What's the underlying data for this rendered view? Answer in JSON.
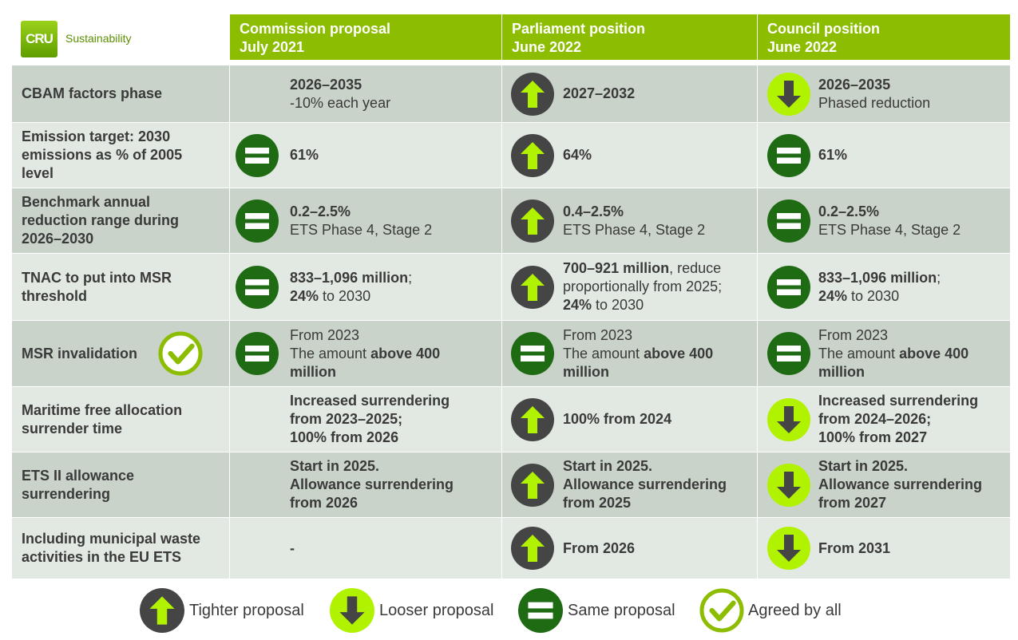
{
  "header": {
    "logo": "CRU",
    "brand": "Sustainability",
    "columns": [
      [
        "Commission proposal",
        "July 2021"
      ],
      [
        "Parliament position",
        "June 2022"
      ],
      [
        "Council position",
        "June 2022"
      ]
    ]
  },
  "table": {
    "rows": [
      {
        "label": [
          "CBAM factors phase"
        ],
        "cells": [
          {
            "icon": null,
            "lines": [
              [
                {
                  "text": "2026–2035",
                  "bold": true
                }
              ],
              [
                {
                  "text": "-10% each year",
                  "bold": false
                }
              ]
            ]
          },
          {
            "icon": "tighter",
            "lines": [
              [
                {
                  "text": "2027–2032",
                  "bold": true
                }
              ]
            ]
          },
          {
            "icon": "looser",
            "lines": [
              [
                {
                  "text": "2026–2035",
                  "bold": true
                }
              ],
              [
                {
                  "text": "Phased reduction",
                  "bold": false
                }
              ]
            ]
          }
        ]
      },
      {
        "label": [
          "Emission target: 2030",
          "emissions as % of 2005",
          "level"
        ],
        "cells": [
          {
            "icon": "same",
            "lines": [
              [
                {
                  "text": "61%",
                  "bold": true
                }
              ]
            ]
          },
          {
            "icon": "tighter",
            "lines": [
              [
                {
                  "text": "64%",
                  "bold": true
                }
              ]
            ]
          },
          {
            "icon": "same",
            "lines": [
              [
                {
                  "text": "61%",
                  "bold": true
                }
              ]
            ]
          }
        ]
      },
      {
        "label": [
          "Benchmark annual",
          "reduction range during",
          "2026–2030"
        ],
        "cells": [
          {
            "icon": "same",
            "lines": [
              [
                {
                  "text": "0.2–2.5%",
                  "bold": true
                }
              ],
              [
                {
                  "text": "ETS Phase 4, Stage 2",
                  "bold": false
                }
              ]
            ]
          },
          {
            "icon": "tighter",
            "lines": [
              [
                {
                  "text": "0.4–2.5%",
                  "bold": true
                }
              ],
              [
                {
                  "text": "ETS Phase 4, Stage 2",
                  "bold": false
                }
              ]
            ]
          },
          {
            "icon": "same",
            "lines": [
              [
                {
                  "text": "0.2–2.5%",
                  "bold": true
                }
              ],
              [
                {
                  "text": "ETS Phase 4, Stage 2",
                  "bold": false
                }
              ]
            ]
          }
        ]
      },
      {
        "label": [
          "TNAC to put into MSR",
          "threshold"
        ],
        "cells": [
          {
            "icon": "same",
            "lines": [
              [
                {
                  "text": "833–1,096 million",
                  "bold": true
                },
                {
                  "text": ";",
                  "bold": false
                }
              ],
              [
                {
                  "text": "24%",
                  "bold": true
                },
                {
                  "text": " to 2030",
                  "bold": false
                }
              ]
            ]
          },
          {
            "icon": "tighter",
            "lines": [
              [
                {
                  "text": "700–921 million",
                  "bold": true
                },
                {
                  "text": ", reduce",
                  "bold": false
                }
              ],
              [
                {
                  "text": "proportionally from 2025;",
                  "bold": false
                }
              ],
              [
                {
                  "text": "24%",
                  "bold": true
                },
                {
                  "text": " to 2030",
                  "bold": false
                }
              ]
            ]
          },
          {
            "icon": "same",
            "lines": [
              [
                {
                  "text": "833–1,096 million",
                  "bold": true
                },
                {
                  "text": ";",
                  "bold": false
                }
              ],
              [
                {
                  "text": "24%",
                  "bold": true
                },
                {
                  "text": " to 2030",
                  "bold": false
                }
              ]
            ]
          }
        ]
      },
      {
        "label": [
          "MSR invalidation"
        ],
        "badge": "agreed",
        "cells": [
          {
            "icon": "same",
            "lines": [
              [
                {
                  "text": "From 2023",
                  "bold": false
                }
              ],
              [
                {
                  "text": "The amount ",
                  "bold": false
                },
                {
                  "text": "above 400",
                  "bold": true
                }
              ],
              [
                {
                  "text": "million",
                  "bold": true
                }
              ]
            ]
          },
          {
            "icon": "same",
            "lines": [
              [
                {
                  "text": "From 2023",
                  "bold": false
                }
              ],
              [
                {
                  "text": "The amount ",
                  "bold": false
                },
                {
                  "text": "above 400",
                  "bold": true
                }
              ],
              [
                {
                  "text": "million",
                  "bold": true
                }
              ]
            ]
          },
          {
            "icon": "same",
            "lines": [
              [
                {
                  "text": "From 2023",
                  "bold": false
                }
              ],
              [
                {
                  "text": "The amount ",
                  "bold": false
                },
                {
                  "text": "above 400",
                  "bold": true
                }
              ],
              [
                {
                  "text": "million",
                  "bold": true
                }
              ]
            ]
          }
        ]
      },
      {
        "label": [
          "Maritime free allocation",
          "surrender time"
        ],
        "cells": [
          {
            "icon": null,
            "lines": [
              [
                {
                  "text": "Increased surrendering",
                  "bold": true
                }
              ],
              [
                {
                  "text": "from 2023–2025;",
                  "bold": true
                }
              ],
              [
                {
                  "text": "100% from 2026",
                  "bold": true
                }
              ]
            ]
          },
          {
            "icon": "tighter",
            "lines": [
              [
                {
                  "text": "100% from 2024",
                  "bold": true
                }
              ]
            ]
          },
          {
            "icon": "looser",
            "lines": [
              [
                {
                  "text": "Increased surrendering",
                  "bold": true
                }
              ],
              [
                {
                  "text": "from 2024–2026;",
                  "bold": true
                }
              ],
              [
                {
                  "text": "100% from 2027",
                  "bold": true
                }
              ]
            ]
          }
        ]
      },
      {
        "label": [
          "ETS II allowance",
          "surrendering"
        ],
        "cells": [
          {
            "icon": null,
            "lines": [
              [
                {
                  "text": "Start in 2025.",
                  "bold": true
                }
              ],
              [
                {
                  "text": "Allowance surrendering",
                  "bold": true
                }
              ],
              [
                {
                  "text": "from 2026",
                  "bold": true
                }
              ]
            ]
          },
          {
            "icon": "tighter",
            "lines": [
              [
                {
                  "text": "Start in 2025.",
                  "bold": true
                }
              ],
              [
                {
                  "text": "Allowance surrendering",
                  "bold": true
                }
              ],
              [
                {
                  "text": "from 2025",
                  "bold": true
                }
              ]
            ]
          },
          {
            "icon": "looser",
            "lines": [
              [
                {
                  "text": "Start in 2025.",
                  "bold": true
                }
              ],
              [
                {
                  "text": "Allowance surrendering",
                  "bold": true
                }
              ],
              [
                {
                  "text": "from 2027",
                  "bold": true
                }
              ]
            ]
          }
        ]
      },
      {
        "label": [
          "Including municipal waste",
          "activities in the EU ETS"
        ],
        "cells": [
          {
            "icon": null,
            "lines": [
              [
                {
                  "text": "-",
                  "bold": true
                }
              ]
            ]
          },
          {
            "icon": "tighter",
            "lines": [
              [
                {
                  "text": "From 2026",
                  "bold": true
                }
              ]
            ]
          },
          {
            "icon": "looser",
            "lines": [
              [
                {
                  "text": "From 2031",
                  "bold": true
                }
              ]
            ]
          }
        ]
      }
    ]
  },
  "legend": [
    {
      "icon": "tighter",
      "text": "Tighter proposal"
    },
    {
      "icon": "looser",
      "text": "Looser proposal"
    },
    {
      "icon": "same",
      "text": "Same proposal"
    },
    {
      "icon": "agreed",
      "text": "Agreed by all"
    }
  ]
}
